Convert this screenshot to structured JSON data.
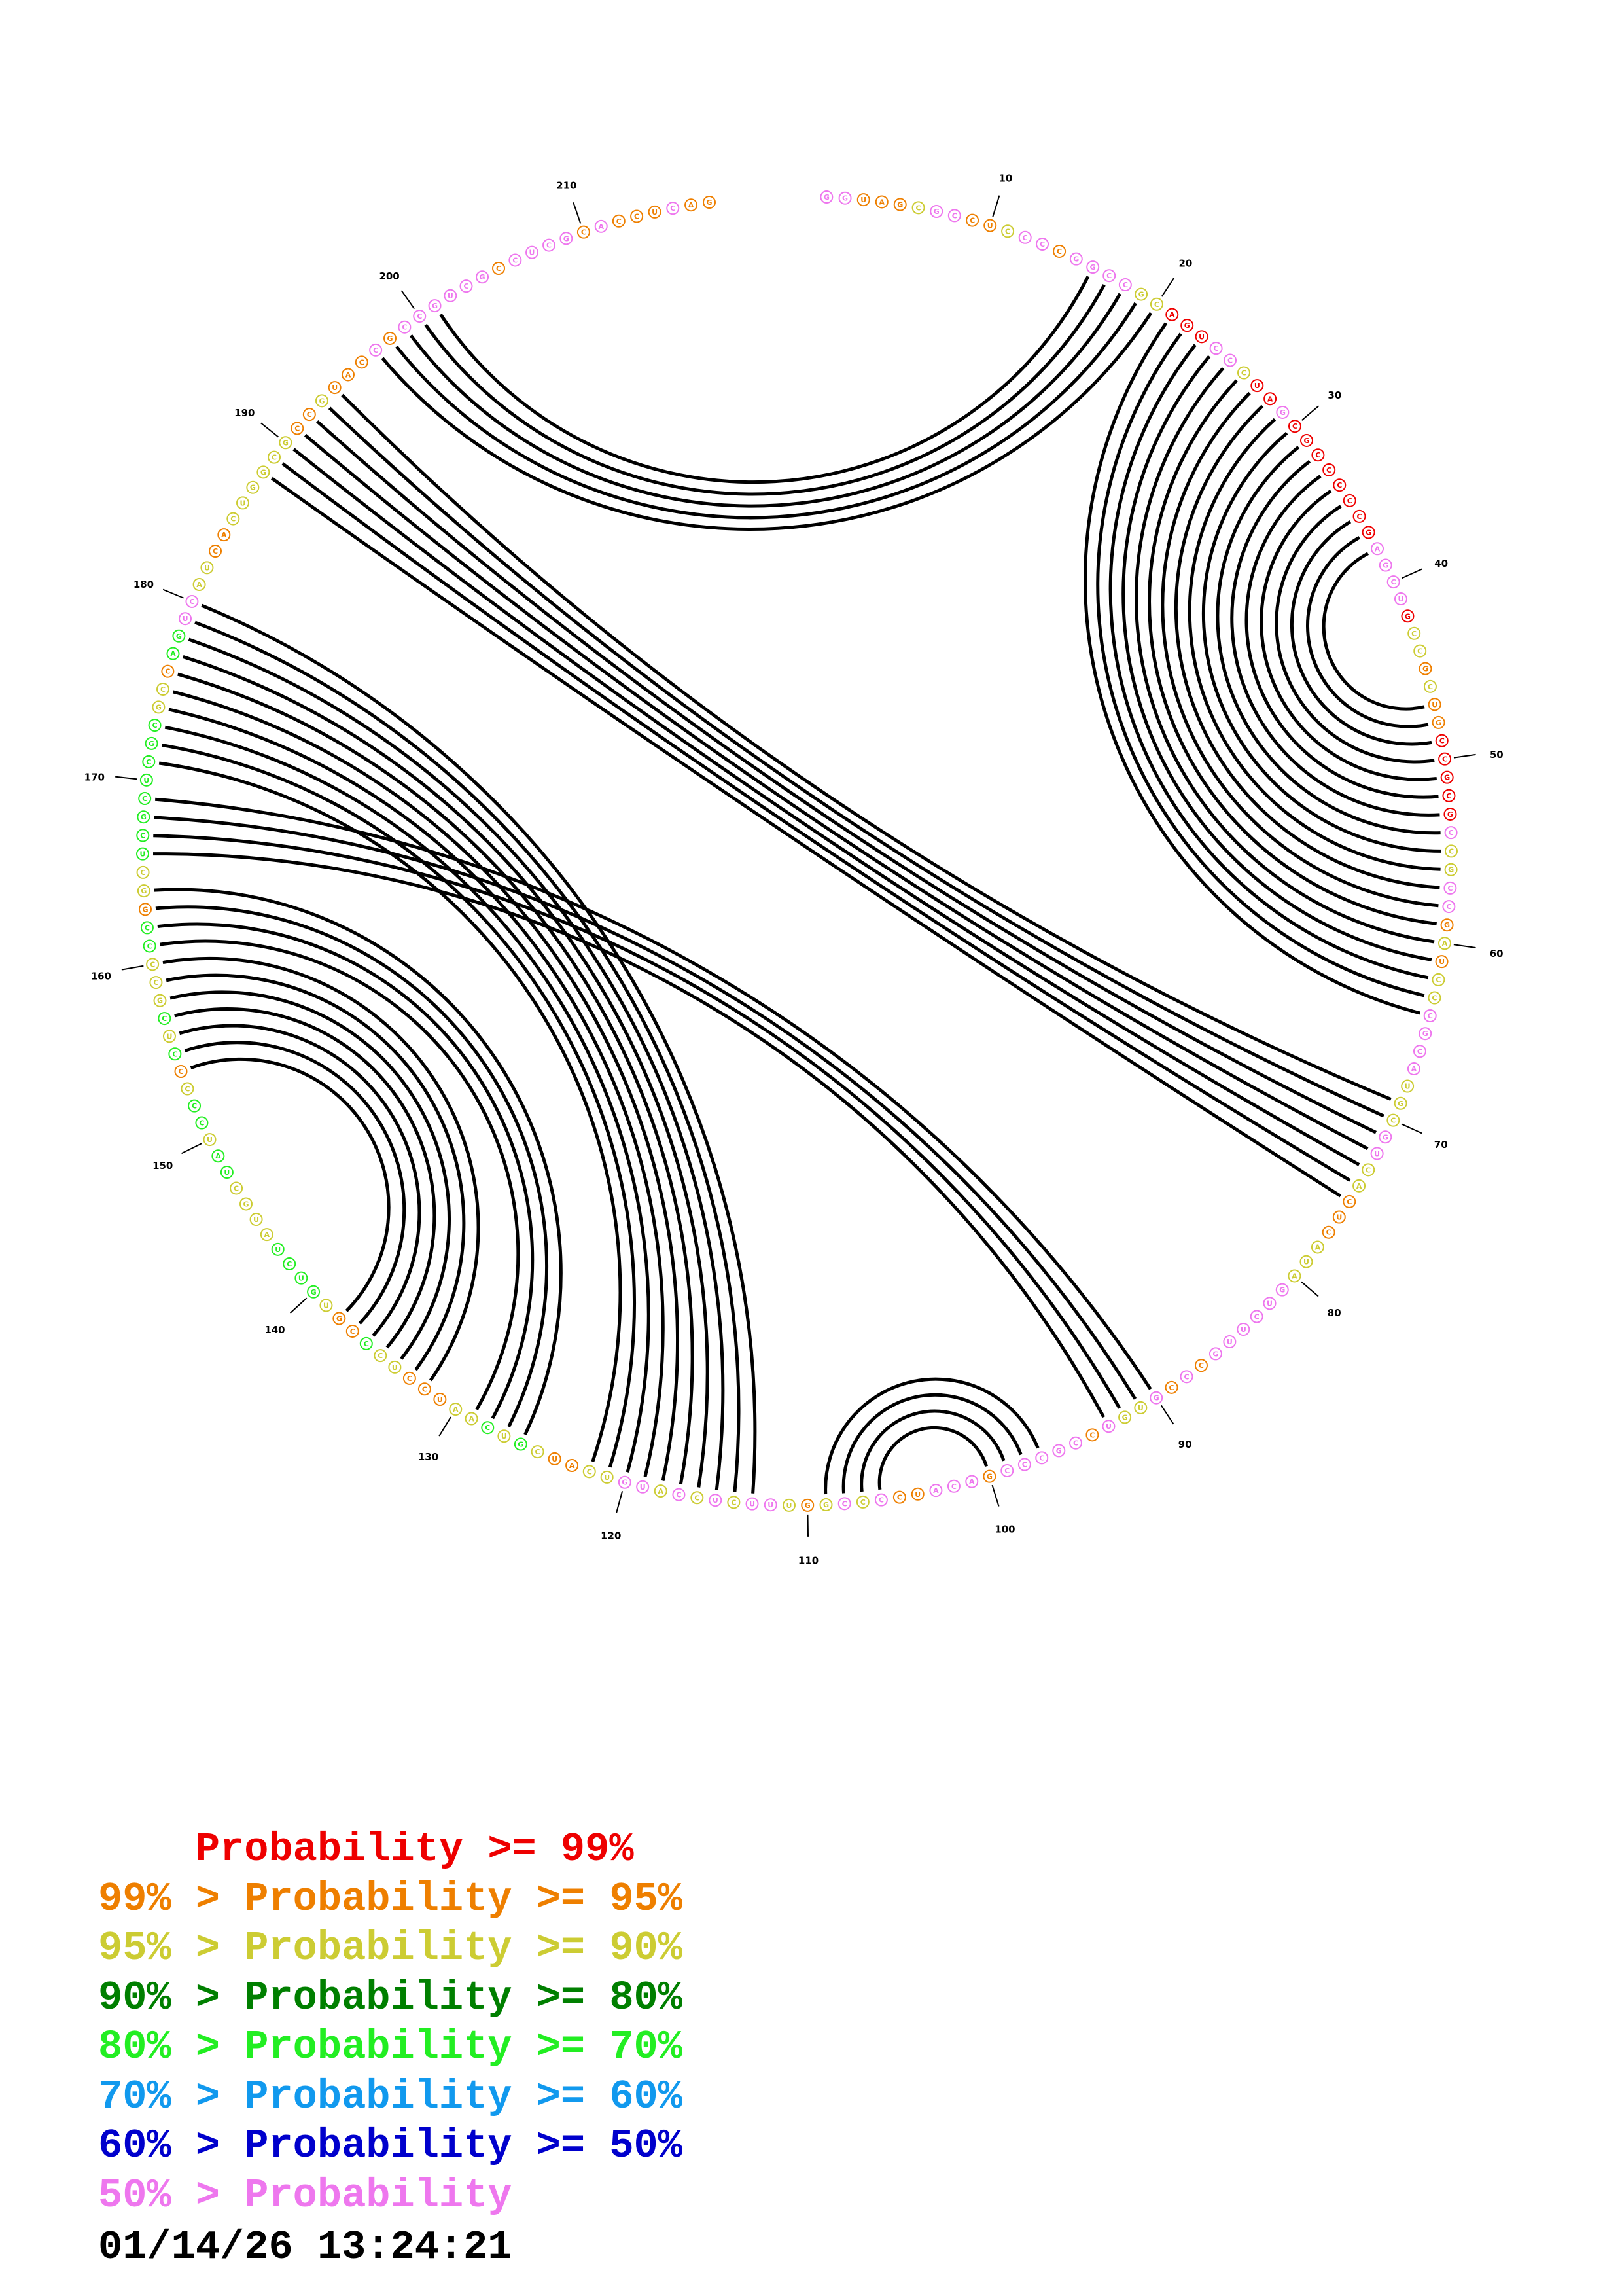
{
  "diagram": {
    "sequence": "GGUAGCGCCUCCCCGGCCGCAGUCCCUAGCGCCCCCGAGCUGCCGCUGCCGCGCCGCCGAUCCCGCAUGCGUCACUCAUAGUCUUGCCCGUGUCCGCCCGACAUCCCCGGUUUCUCCAUGUCAUCGUCAAUCCUCCCGUGUCUAUGCUAUCCCCCUCGCCCCGGCUCGCUCGCGCCAGUCAUCACUGGCGCCGUACCGCCGUCGCCUCGCACCUCAG",
    "nucleotide_colors": "PPOOOYPPOOYPPOPPPPYYRRRPPYRRPRRRRRRRRPPPPRYYOYOORRRRRPYYPPOYOYYPPPPYYYPPYYOOOYYYPPPPPPOPOPYYPOPPPPPOPPPOOPYPYOYPPYPYPYPPYYOOYGYGYYOOOYYGOOYGGGGYYYYGGYGGYOGYGYYYGGOYYGGGGGGGGYYOGGPPYYOOYYYYYYOOYOOOPOPPPPPPOPPPPOPOOOPOOO",
    "position_labels": [
      "10",
      "20",
      "30",
      "40",
      "50",
      "60",
      "70",
      "80",
      "90",
      "100",
      "110",
      "120",
      "130",
      "140",
      "150",
      "160",
      "170",
      "180",
      "190",
      "200",
      "210"
    ],
    "base_pairs": [
      [
        16,
        201
      ],
      [
        17,
        200
      ],
      [
        18,
        199
      ],
      [
        19,
        198
      ],
      [
        20,
        197
      ],
      [
        21,
        64
      ],
      [
        22,
        63
      ],
      [
        23,
        62
      ],
      [
        24,
        61
      ],
      [
        25,
        60
      ],
      [
        26,
        59
      ],
      [
        27,
        58
      ],
      [
        28,
        57
      ],
      [
        29,
        56
      ],
      [
        30,
        55
      ],
      [
        31,
        54
      ],
      [
        32,
        53
      ],
      [
        33,
        52
      ],
      [
        34,
        51
      ],
      [
        35,
        50
      ],
      [
        36,
        49
      ],
      [
        37,
        48
      ],
      [
        38,
        47
      ],
      [
        69,
        194
      ],
      [
        70,
        193
      ],
      [
        71,
        192
      ],
      [
        72,
        191
      ],
      [
        73,
        190
      ],
      [
        74,
        189
      ],
      [
        75,
        188
      ],
      [
        90,
        169
      ],
      [
        91,
        168
      ],
      [
        92,
        167
      ],
      [
        93,
        166
      ],
      [
        97,
        109
      ],
      [
        98,
        108
      ],
      [
        99,
        107
      ],
      [
        100,
        106
      ],
      [
        113,
        180
      ],
      [
        114,
        179
      ],
      [
        115,
        178
      ],
      [
        116,
        177
      ],
      [
        117,
        176
      ],
      [
        118,
        175
      ],
      [
        119,
        174
      ],
      [
        120,
        173
      ],
      [
        121,
        172
      ],
      [
        122,
        171
      ],
      [
        126,
        164
      ],
      [
        127,
        163
      ],
      [
        128,
        162
      ],
      [
        129,
        161
      ],
      [
        132,
        160
      ],
      [
        133,
        159
      ],
      [
        134,
        158
      ],
      [
        135,
        157
      ],
      [
        136,
        156
      ],
      [
        137,
        155
      ],
      [
        138,
        154
      ]
    ]
  },
  "legend": [
    {
      "prefix": "    ",
      "text": "Probability >= 99%",
      "color": "#ee0000"
    },
    {
      "prefix": "99% > ",
      "text": "Probability >= 95%",
      "color": "#ee7f00"
    },
    {
      "prefix": "95% > ",
      "text": "Probability >= 90%",
      "color": "#cccc33"
    },
    {
      "prefix": "90% > ",
      "text": "Probability >= 80%",
      "color": "#007f00"
    },
    {
      "prefix": "80% > ",
      "text": "Probability >= 70%",
      "color": "#22ee22"
    },
    {
      "prefix": "70% > ",
      "text": "Probability >= 60%",
      "color": "#1199ee"
    },
    {
      "prefix": "60% > ",
      "text": "Probability >= 50%",
      "color": "#0000cc"
    },
    {
      "prefix": "50% > ",
      "text": "Probability",
      "color": "#ee77ee"
    }
  ],
  "timestamp": "01/14/26 13:24:21",
  "class_colors": {
    "R": "#ee0000",
    "O": "#ee7f00",
    "Y": "#cccc33",
    "G": "#22ee22",
    "P": "#ee77ee"
  }
}
